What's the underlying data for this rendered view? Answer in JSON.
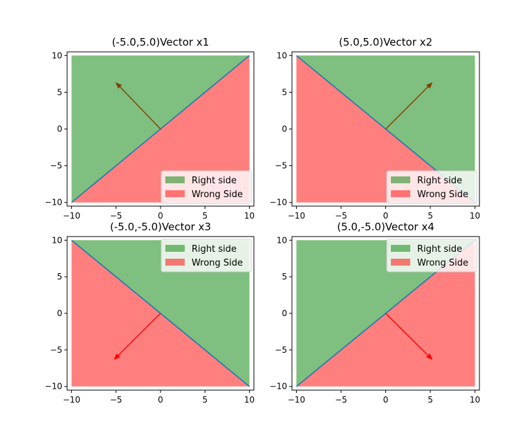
{
  "colors": {
    "right_fill": "#008000",
    "wrong_fill": "#ff0000",
    "boundary": "#1f77b4",
    "arrow_on_right": "#7f4000",
    "arrow_on_wrong": "#ff0000"
  },
  "chart_data": [
    {
      "type": "area",
      "title": "(-5.0,5.0)Vector x1",
      "xlim": [
        -10.5,
        10.5
      ],
      "ylim": [
        -10.5,
        10.5
      ],
      "x_ticks": [
        -10,
        -5,
        0,
        5,
        10
      ],
      "y_ticks": [
        -10,
        -5,
        0,
        5,
        10
      ],
      "xtick_labels": [
        "−10",
        "−5",
        "0",
        "5",
        "10"
      ],
      "ytick_labels": [
        "−10",
        "−5",
        "0",
        "5",
        "10"
      ],
      "boundary_line": [
        [
          -10,
          -10
        ],
        [
          10,
          10
        ]
      ],
      "regions": [
        {
          "label": "Right side",
          "color": "#008000",
          "alpha": 0.5,
          "polygon": [
            [
              -10,
              -10
            ],
            [
              10,
              10
            ],
            [
              -10,
              10
            ]
          ]
        },
        {
          "label": "Wrong Side",
          "color": "#ff0000",
          "alpha": 0.5,
          "polygon": [
            [
              -10,
              -10
            ],
            [
              10,
              10
            ],
            [
              10,
              -10
            ]
          ]
        }
      ],
      "vector": {
        "from": [
          0,
          0
        ],
        "to": [
          -5,
          6.3
        ],
        "color": "#7f4000"
      },
      "legend_position": "lower-right",
      "legend": [
        "Right side",
        "Wrong Side"
      ]
    },
    {
      "type": "area",
      "title": "(5.0,5.0)Vector x2",
      "xlim": [
        -10.5,
        10.5
      ],
      "ylim": [
        -10.5,
        10.5
      ],
      "x_ticks": [
        -10,
        -5,
        0,
        5,
        10
      ],
      "y_ticks": [
        -10,
        -5,
        0,
        5,
        10
      ],
      "xtick_labels": [
        "−10",
        "−5",
        "0",
        "5",
        "10"
      ],
      "ytick_labels": [
        "−10",
        "−5",
        "0",
        "5",
        "10"
      ],
      "boundary_line": [
        [
          -10,
          10
        ],
        [
          10,
          -10
        ]
      ],
      "regions": [
        {
          "label": "Right side",
          "color": "#008000",
          "alpha": 0.5,
          "polygon": [
            [
              -10,
              10
            ],
            [
              10,
              10
            ],
            [
              10,
              -10
            ]
          ]
        },
        {
          "label": "Wrong Side",
          "color": "#ff0000",
          "alpha": 0.5,
          "polygon": [
            [
              -10,
              10
            ],
            [
              10,
              -10
            ],
            [
              -10,
              -10
            ]
          ]
        }
      ],
      "vector": {
        "from": [
          0,
          0
        ],
        "to": [
          5.2,
          6.3
        ],
        "color": "#7f4000"
      },
      "legend_position": "lower-right",
      "legend": [
        "Right side",
        "Wrong Side"
      ]
    },
    {
      "type": "area",
      "title": "(-5.0,-5.0)Vector x3",
      "xlim": [
        -10.5,
        10.5
      ],
      "ylim": [
        -10.5,
        10.5
      ],
      "x_ticks": [
        -10,
        -5,
        0,
        5,
        10
      ],
      "y_ticks": [
        -10,
        -5,
        0,
        5,
        10
      ],
      "xtick_labels": [
        "−10",
        "−5",
        "0",
        "5",
        "10"
      ],
      "ytick_labels": [
        "−10",
        "−5",
        "0",
        "5",
        "10"
      ],
      "boundary_line": [
        [
          -10,
          10
        ],
        [
          10,
          -10
        ]
      ],
      "regions": [
        {
          "label": "Right side",
          "color": "#008000",
          "alpha": 0.5,
          "polygon": [
            [
              -10,
              10
            ],
            [
              10,
              10
            ],
            [
              10,
              -10
            ]
          ]
        },
        {
          "label": "Wrong Side",
          "color": "#ff0000",
          "alpha": 0.5,
          "polygon": [
            [
              -10,
              10
            ],
            [
              10,
              -10
            ],
            [
              -10,
              -10
            ]
          ]
        }
      ],
      "vector": {
        "from": [
          0,
          0
        ],
        "to": [
          -5.2,
          -6.3
        ],
        "color": "#ff0000"
      },
      "legend_position": "upper-right",
      "legend": [
        "Right side",
        "Wrong Side"
      ]
    },
    {
      "type": "area",
      "title": "(5.0,-5.0)Vector x4",
      "xlim": [
        -10.5,
        10.5
      ],
      "ylim": [
        -10.5,
        10.5
      ],
      "x_ticks": [
        -10,
        -5,
        0,
        5,
        10
      ],
      "y_ticks": [
        -10,
        -5,
        0,
        5,
        10
      ],
      "xtick_labels": [
        "−10",
        "−5",
        "0",
        "5",
        "10"
      ],
      "ytick_labels": [
        "−10",
        "−5",
        "0",
        "5",
        "10"
      ],
      "boundary_line": [
        [
          -10,
          -10
        ],
        [
          10,
          10
        ]
      ],
      "regions": [
        {
          "label": "Right side",
          "color": "#008000",
          "alpha": 0.5,
          "polygon": [
            [
              -10,
              -10
            ],
            [
              10,
              10
            ],
            [
              -10,
              10
            ]
          ]
        },
        {
          "label": "Wrong Side",
          "color": "#ff0000",
          "alpha": 0.5,
          "polygon": [
            [
              -10,
              -10
            ],
            [
              10,
              10
            ],
            [
              10,
              -10
            ]
          ]
        }
      ],
      "vector": {
        "from": [
          0,
          0
        ],
        "to": [
          5.2,
          -6.3
        ],
        "color": "#ff0000"
      },
      "legend_position": "upper-right",
      "legend": [
        "Right side",
        "Wrong Side"
      ]
    }
  ]
}
